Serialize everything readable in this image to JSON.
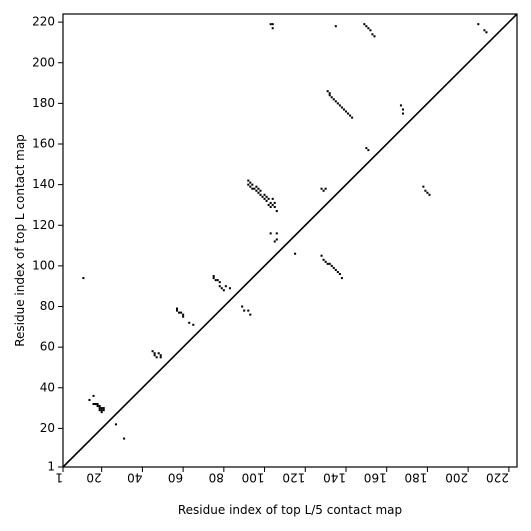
{
  "chart_data": {
    "type": "heatmap",
    "title": "",
    "xlabel": "Residue index of top L/5 contact map",
    "ylabel": "Residue index of top L contact map",
    "xlim": [
      1,
      224
    ],
    "ylim": [
      1,
      224
    ],
    "x_ticks": [
      1,
      20,
      40,
      60,
      80,
      100,
      120,
      140,
      160,
      180,
      200,
      220
    ],
    "y_ticks": [
      1,
      20,
      40,
      60,
      80,
      100,
      120,
      140,
      160,
      180,
      200,
      220
    ],
    "x_tick_rotation": -90,
    "diagonal": true,
    "color": "#000000",
    "series": [
      {
        "region": "upper-left (top L/5 contacts)",
        "points": [
          [
            11,
            94
          ],
          [
            14,
            34
          ],
          [
            16,
            36
          ],
          [
            16,
            32
          ],
          [
            17,
            32
          ],
          [
            18,
            31
          ],
          [
            18,
            32
          ],
          [
            19,
            29
          ],
          [
            19,
            30
          ],
          [
            19,
            31
          ],
          [
            20,
            28
          ],
          [
            20,
            29
          ],
          [
            20,
            30
          ],
          [
            21,
            29
          ],
          [
            21,
            30
          ],
          [
            27,
            22
          ],
          [
            31,
            15
          ],
          [
            45,
            58
          ],
          [
            46,
            56
          ],
          [
            46,
            57
          ],
          [
            47,
            55
          ],
          [
            48,
            57
          ],
          [
            49,
            55
          ],
          [
            49,
            56
          ],
          [
            57,
            78
          ],
          [
            57,
            79
          ],
          [
            58,
            77
          ],
          [
            59,
            77
          ],
          [
            60,
            75
          ],
          [
            60,
            76
          ],
          [
            63,
            72
          ],
          [
            65,
            71
          ],
          [
            75,
            94
          ],
          [
            75,
            95
          ],
          [
            76,
            93
          ],
          [
            77,
            93
          ],
          [
            78,
            92
          ],
          [
            78,
            90
          ],
          [
            79,
            89
          ],
          [
            80,
            88
          ],
          [
            81,
            90
          ],
          [
            83,
            89
          ],
          [
            89,
            80
          ],
          [
            90,
            78
          ],
          [
            92,
            78
          ],
          [
            93,
            76
          ],
          [
            92,
            140
          ],
          [
            92,
            142
          ],
          [
            93,
            139
          ],
          [
            93,
            141
          ],
          [
            94,
            138
          ],
          [
            94,
            140
          ],
          [
            95,
            138
          ],
          [
            96,
            137
          ],
          [
            96,
            139
          ],
          [
            97,
            136
          ],
          [
            97,
            138
          ],
          [
            98,
            135
          ],
          [
            98,
            137
          ],
          [
            99,
            134
          ],
          [
            100,
            133
          ],
          [
            100,
            135
          ],
          [
            101,
            132
          ],
          [
            101,
            134
          ],
          [
            102,
            130
          ],
          [
            102,
            133
          ],
          [
            103,
            129
          ],
          [
            103,
            131
          ],
          [
            104,
            130
          ],
          [
            104,
            133
          ],
          [
            105,
            129
          ],
          [
            105,
            131
          ],
          [
            106,
            127
          ],
          [
            103,
            116
          ],
          [
            105,
            112
          ],
          [
            106,
            113
          ],
          [
            106,
            116
          ],
          [
            115,
            106
          ],
          [
            103,
            219
          ],
          [
            104,
            217
          ],
          [
            104,
            219
          ],
          [
            128,
            105
          ],
          [
            129,
            103
          ],
          [
            130,
            102
          ],
          [
            131,
            101
          ],
          [
            132,
            101
          ],
          [
            133,
            100
          ],
          [
            134,
            99
          ],
          [
            135,
            98
          ],
          [
            136,
            97
          ],
          [
            137,
            96
          ],
          [
            138,
            94
          ],
          [
            128,
            138
          ],
          [
            129,
            137
          ],
          [
            130,
            138
          ]
        ]
      },
      {
        "region": "lower-right (top L contacts)",
        "points": [
          [
            131,
            186
          ],
          [
            132,
            184
          ],
          [
            132,
            185
          ],
          [
            133,
            183
          ],
          [
            134,
            182
          ],
          [
            135,
            181
          ],
          [
            136,
            180
          ],
          [
            137,
            179
          ],
          [
            138,
            178
          ],
          [
            139,
            177
          ],
          [
            140,
            176
          ],
          [
            141,
            175
          ],
          [
            142,
            174
          ],
          [
            143,
            173
          ],
          [
            135,
            218
          ],
          [
            149,
            219
          ],
          [
            150,
            218
          ],
          [
            151,
            217
          ],
          [
            152,
            216
          ],
          [
            153,
            214
          ],
          [
            154,
            213
          ],
          [
            150,
            158
          ],
          [
            151,
            157
          ],
          [
            167,
            179
          ],
          [
            168,
            177
          ],
          [
            168,
            175
          ],
          [
            178,
            139
          ],
          [
            179,
            137
          ],
          [
            180,
            136
          ],
          [
            181,
            135
          ],
          [
            205,
            219
          ],
          [
            208,
            216
          ],
          [
            209,
            215
          ]
        ]
      }
    ]
  }
}
